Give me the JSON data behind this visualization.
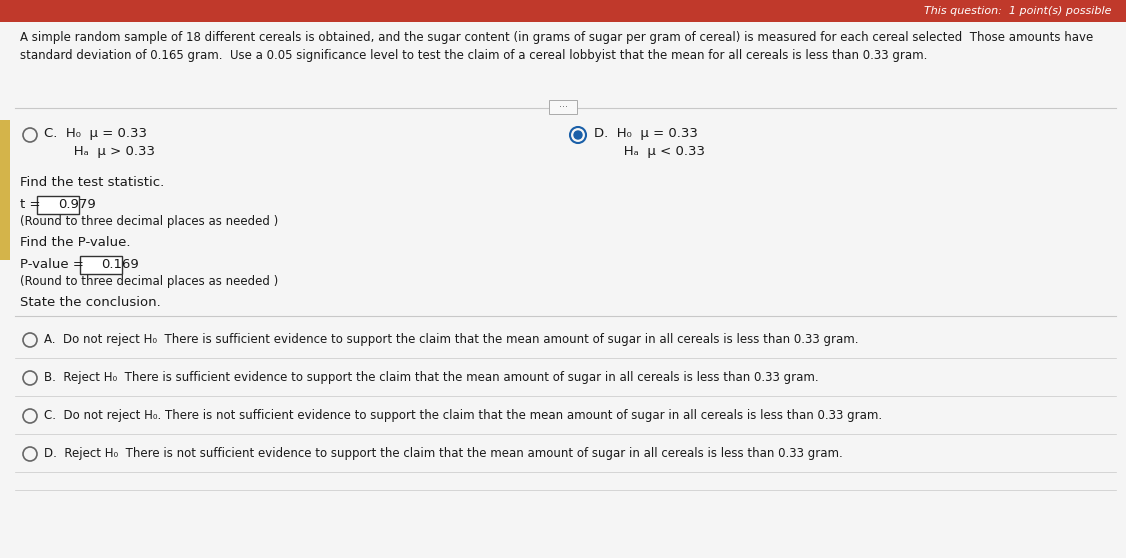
{
  "bg_color": "#e8e8e8",
  "white_bg": "#f5f5f5",
  "header_bg": "#c0392b",
  "header_text": "This question:  1 point(s) possible",
  "problem_text_line1": "A simple random sample of 18 different cereals is obtained, and the sugar content (in grams of sugar per gram of cereal) is measured for each cereal selected  Those amounts have",
  "problem_text_line2": "standard deviation of 0.165 gram.  Use a 0.05 significance level to test the claim of a cereal lobbyist that the mean for all cereals is less than 0.33 gram.",
  "option_C_H0": "C.  H₀  μ = 0.33",
  "option_C_Ha": "       Hₐ  μ > 0.33",
  "option_D_H0": "D.  H₀  μ = 0.33",
  "option_D_Ha": "       Hₐ  μ < 0.33",
  "find_test_stat_label": "Find the test statistic.",
  "t_prefix": "t = ",
  "t_value": "0.979",
  "t_note": "(Round to three decimal places as needed )",
  "find_pvalue_label": "Find the P-value.",
  "pvalue_prefix": "P-value = ",
  "pvalue_value": "0.169",
  "pvalue_note": "(Round to three decimal places as needed )",
  "conclusion_label": "State the conclusion.",
  "conclusion_A": "A.  Do not reject H₀  There is sufficient evidence to support the claim that the mean amount of sugar in all cereals is less than 0.33 gram.",
  "conclusion_B": "B.  Reject H₀  There is sufficient evidence to support the claim that the mean amount of sugar in all cereals is less than 0.33 gram.",
  "conclusion_C": "C.  Do not reject H₀. There is not sufficient evidence to support the claim that the mean amount of sugar in all cereals is less than 0.33 gram.",
  "conclusion_D": "D.  Reject H₀  There is not sufficient evidence to support the claim that the mean amount of sugar in all cereals is less than 0.33 gram.",
  "left_bar_color": "#d4b44a",
  "selected_radio_color": "#1a5fa8",
  "separator_color": "#c8c8c8",
  "text_color": "#1a1a1a",
  "small_text_color": "#333333"
}
